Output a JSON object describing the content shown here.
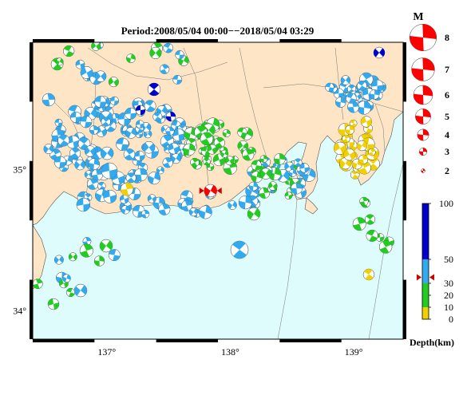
{
  "title": "Period:2008/05/04 00:00−−2018/05/04 03:29",
  "map": {
    "lon_range": [
      136.4,
      139.4
    ],
    "lat_range": [
      33.8,
      35.9
    ],
    "lon_ticks": [
      {
        "v": 137,
        "label": "137°"
      },
      {
        "v": 138,
        "label": "138°"
      },
      {
        "v": 139,
        "label": "139°"
      }
    ],
    "lat_ticks": [
      {
        "v": 34,
        "label": "34°"
      },
      {
        "v": 35,
        "label": "35°"
      }
    ],
    "colors": {
      "land": "#fde5c6",
      "sea": "#dffcfd",
      "frame": "#000000",
      "border": "#555555"
    },
    "highlight": {
      "lon": 137.84,
      "lat": 34.85,
      "color": "#ff0000"
    }
  },
  "legend_magnitude": {
    "title": "M",
    "items": [
      {
        "m": 8,
        "label": "8"
      },
      {
        "m": 7,
        "label": "7"
      },
      {
        "m": 6,
        "label": "6"
      },
      {
        "m": 5,
        "label": "5"
      },
      {
        "m": 4,
        "label": "4"
      },
      {
        "m": 3,
        "label": "3"
      },
      {
        "m": 2,
        "label": "2"
      }
    ],
    "color": "#ff0000"
  },
  "legend_depth": {
    "title": "Depth(km)",
    "ticks": [
      {
        "v": 100,
        "label": "100"
      },
      {
        "v": 50,
        "label": "50"
      },
      {
        "v": 30,
        "label": "30"
      },
      {
        "v": 20,
        "label": "20"
      },
      {
        "v": 10,
        "label": "10"
      },
      {
        "v": 0,
        "label": "0"
      }
    ],
    "bands": [
      {
        "from": 0,
        "to": 10,
        "color": "#f0d000"
      },
      {
        "from": 10,
        "to": 30,
        "color": "#22cc22"
      },
      {
        "from": 30,
        "to": 50,
        "color": "#33aaee"
      },
      {
        "from": 50,
        "to": 100,
        "color": "#0000cc"
      }
    ],
    "marker_depth": 35
  }
}
